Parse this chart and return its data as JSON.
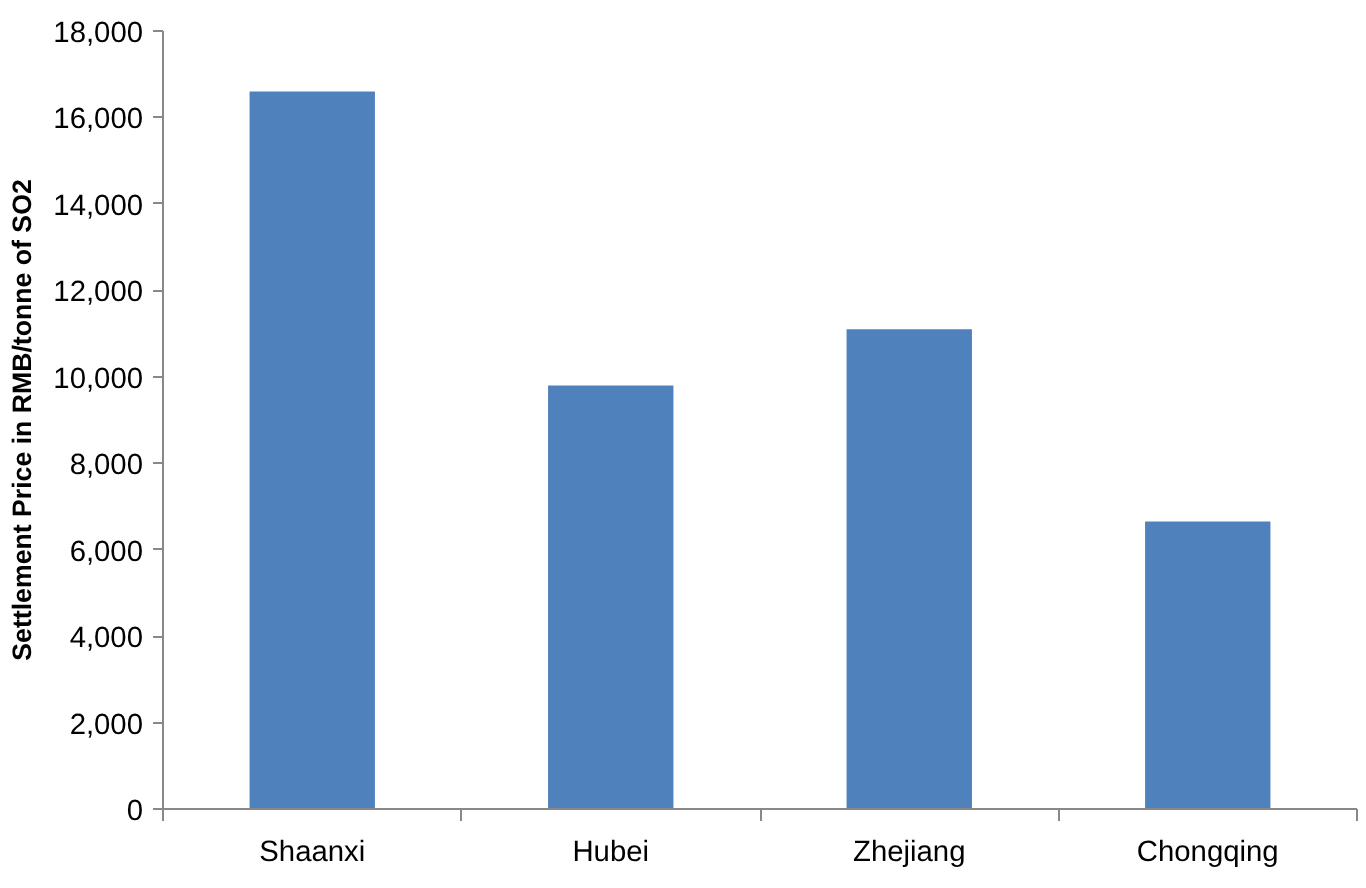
{
  "chart_data": {
    "type": "bar",
    "ylabel": "Settlement Price in RMB/tonne of SO2",
    "categories": [
      "Shaanxi",
      "Hubei",
      "Zhejiang",
      "Chongqing"
    ],
    "values": [
      16600,
      9800,
      11100,
      6650
    ],
    "color": "#4f81bd",
    "ylim": [
      0,
      18000
    ],
    "yticks": [
      {
        "value": 0,
        "label": "0"
      },
      {
        "value": 2000,
        "label": "2,000"
      },
      {
        "value": 4000,
        "label": "4,000"
      },
      {
        "value": 6000,
        "label": "6,000"
      },
      {
        "value": 8000,
        "label": "8,000"
      },
      {
        "value": 10000,
        "label": "10,000"
      },
      {
        "value": 12000,
        "label": "12,000"
      },
      {
        "value": 14000,
        "label": "14,000"
      },
      {
        "value": 16000,
        "label": "16,000"
      },
      {
        "value": 18000,
        "label": "18,000"
      }
    ],
    "grid": false
  }
}
